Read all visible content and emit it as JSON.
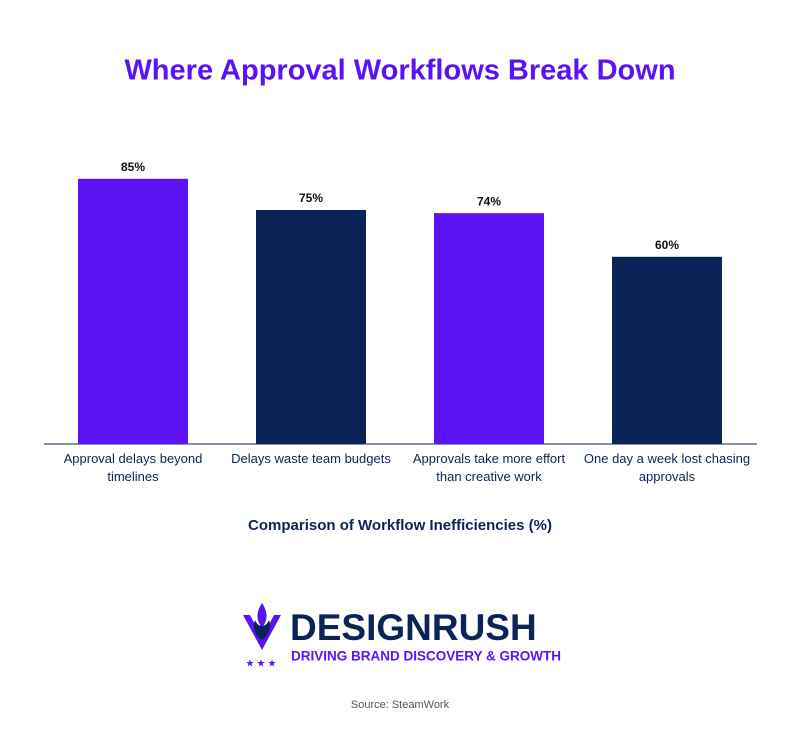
{
  "chart_data": {
    "type": "bar",
    "title": "Where Approval Workflows Break Down",
    "xlabel": "Comparison of Workflow Inefficiencies (%)",
    "categories": [
      "Approval delays beyond timelines",
      "Delays waste team budgets",
      "Approvals take more effort than creative work",
      "One day a week lost chasing approvals"
    ],
    "values": [
      85,
      75,
      74,
      60
    ],
    "value_labels": [
      "85%",
      "75%",
      "74%",
      "60%"
    ],
    "colors": [
      "#5b12f5",
      "#0c2357",
      "#5b12f5",
      "#0c2357"
    ],
    "ylim": [
      0,
      100
    ]
  },
  "branding": {
    "name": "DESIGNRUSH",
    "tagline": "DRIVING BRAND DISCOVERY & GROWTH"
  },
  "source": "Source: SteamWork"
}
